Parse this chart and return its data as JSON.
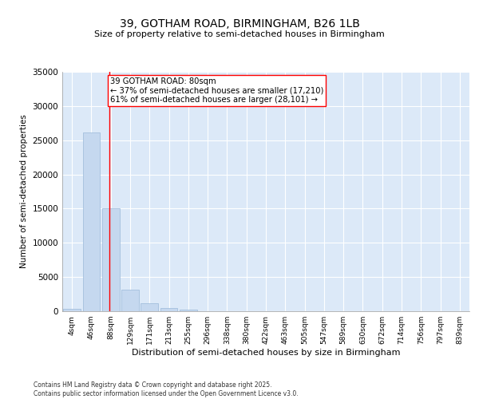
{
  "title": "39, GOTHAM ROAD, BIRMINGHAM, B26 1LB",
  "subtitle": "Size of property relative to semi-detached houses in Birmingham",
  "xlabel": "Distribution of semi-detached houses by size in Birmingham",
  "ylabel": "Number of semi-detached properties",
  "categories": [
    "4sqm",
    "46sqm",
    "88sqm",
    "129sqm",
    "171sqm",
    "213sqm",
    "255sqm",
    "296sqm",
    "338sqm",
    "380sqm",
    "422sqm",
    "463sqm",
    "505sqm",
    "547sqm",
    "589sqm",
    "630sqm",
    "672sqm",
    "714sqm",
    "756sqm",
    "797sqm",
    "839sqm"
  ],
  "values": [
    350,
    26100,
    15100,
    3200,
    1200,
    480,
    200,
    50,
    0,
    0,
    0,
    0,
    0,
    0,
    0,
    0,
    0,
    0,
    0,
    0,
    0
  ],
  "bar_color": "#c5d8ef",
  "bar_edge_color": "#9ab8d8",
  "red_line_x": 1.92,
  "annotation_title": "39 GOTHAM ROAD: 80sqm",
  "annotation_line1": "← 37% of semi-detached houses are smaller (17,210)",
  "annotation_line2": "61% of semi-detached houses are larger (28,101) →",
  "ylim": [
    0,
    35000
  ],
  "yticks": [
    0,
    5000,
    10000,
    15000,
    20000,
    25000,
    30000,
    35000
  ],
  "bg_color": "#dce9f8",
  "footer1": "Contains HM Land Registry data © Crown copyright and database right 2025.",
  "footer2": "Contains public sector information licensed under the Open Government Licence v3.0."
}
